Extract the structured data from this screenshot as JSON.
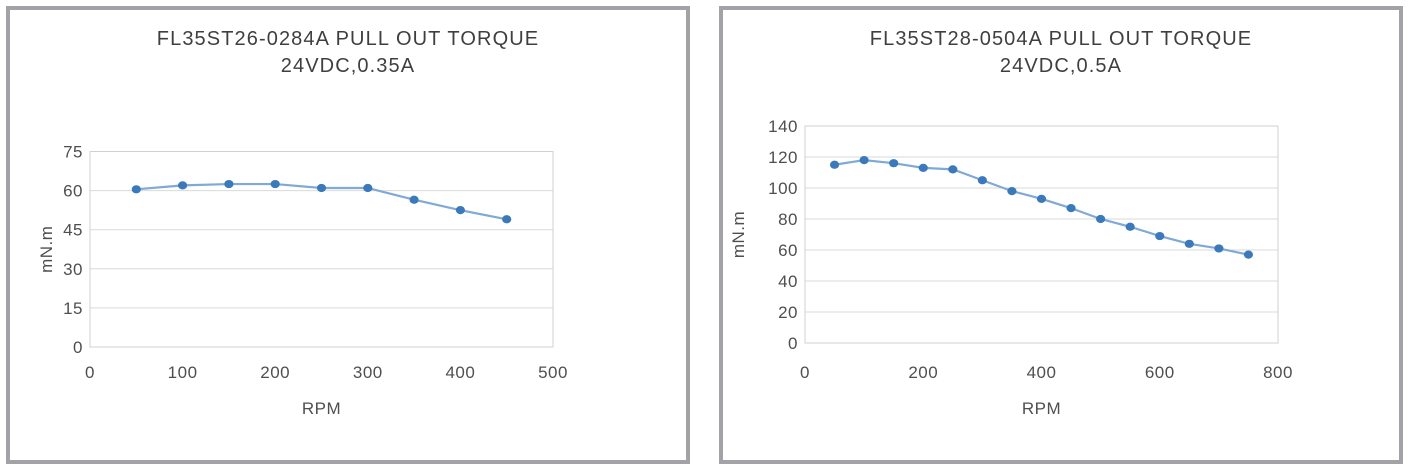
{
  "page": {
    "background": "#ffffff"
  },
  "colors": {
    "line": "#7fa9d6",
    "marker": "#3c79ba",
    "grid": "#d9d9d9",
    "plot_border": "#d2d2d2",
    "text": "#4f4f4f",
    "title_text": "#3f3f3f",
    "panel_border": "#a2a2a7"
  },
  "chart_data": [
    {
      "type": "line",
      "title": "FL35ST26-0284A PULL OUT TORQUE",
      "subtitle": "24VDC,0.35A",
      "xlabel": "RPM",
      "ylabel": "mN.m",
      "xlim": [
        0,
        500
      ],
      "ylim": [
        0,
        75
      ],
      "x_ticks": [
        0,
        100,
        200,
        300,
        400,
        500
      ],
      "y_ticks": [
        0,
        15,
        30,
        45,
        60,
        75
      ],
      "grid": "horizontal",
      "legend": "none",
      "x": [
        50,
        100,
        150,
        200,
        250,
        300,
        350,
        400,
        450
      ],
      "values": [
        60.5,
        62,
        62.5,
        62.5,
        61,
        61,
        56.5,
        52.5,
        49
      ]
    },
    {
      "type": "line",
      "title": "FL35ST28-0504A PULL OUT TORQUE",
      "subtitle": "24VDC,0.5A",
      "xlabel": "RPM",
      "ylabel": "mN.m",
      "xlim": [
        0,
        800
      ],
      "ylim": [
        0,
        140
      ],
      "x_ticks": [
        0,
        200,
        400,
        600,
        800
      ],
      "y_ticks": [
        0,
        20,
        40,
        60,
        80,
        100,
        120,
        140
      ],
      "grid": "horizontal",
      "legend": "none",
      "x": [
        50,
        100,
        150,
        200,
        250,
        300,
        350,
        400,
        450,
        500,
        550,
        600,
        650,
        700,
        750
      ],
      "values": [
        115,
        118,
        116,
        113,
        112,
        105,
        98,
        93,
        87,
        80,
        75,
        69,
        64,
        61,
        57
      ]
    }
  ]
}
